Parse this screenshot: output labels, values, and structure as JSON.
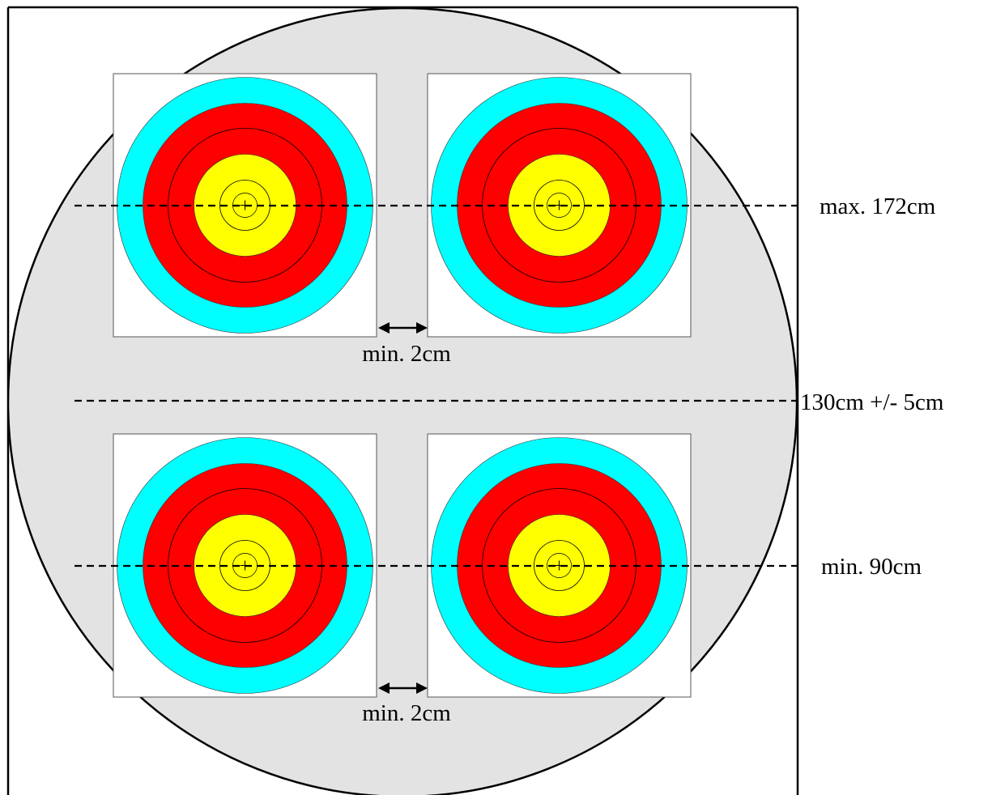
{
  "labels": {
    "top_line": "max. 172cm",
    "middle_line": "130cm +/- 5cm",
    "bottom_line": "min. 90cm",
    "gap_upper": "min. 2cm",
    "gap_lower": "min. 2cm"
  },
  "colors": {
    "boss_fill": "#e3e3e3",
    "face_background": "#ffffff",
    "outer_ring": "#00ffff",
    "middle_ring": "#ff0000",
    "inner_ring": "#ffff00",
    "lines": "#000000"
  },
  "target_faces": [
    {
      "id": "top-left",
      "row": "top",
      "col": "left"
    },
    {
      "id": "top-right",
      "row": "top",
      "col": "right"
    },
    {
      "id": "bottom-left",
      "row": "bottom",
      "col": "left"
    },
    {
      "id": "bottom-right",
      "row": "bottom",
      "col": "right"
    }
  ]
}
